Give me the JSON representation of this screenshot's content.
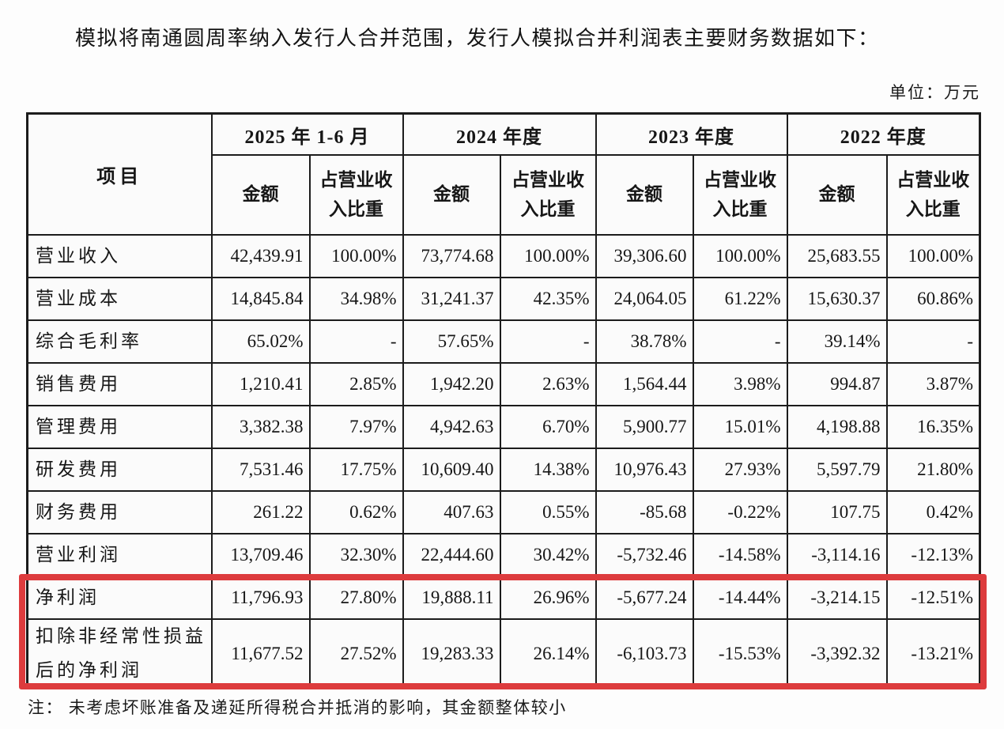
{
  "page": {
    "title": "模拟将南通圆周率纳入发行人合并范围，发行人模拟合并利润表主要财务数据如下：",
    "unit_label": "单位：万元",
    "footnote": "注： 未考虑坏账准备及递延所得税合并抵消的影响，其金额整体较小"
  },
  "table": {
    "corner_header": "项目",
    "period_headers": [
      "2025 年 1-6 月",
      "2024 年度",
      "2023 年度",
      "2022 年度"
    ],
    "sub_headers": {
      "amount": "金额",
      "ratio": "占营业收入比重"
    },
    "rows": [
      {
        "label": "营业收入",
        "values": [
          "42,439.91",
          "100.00%",
          "73,774.68",
          "100.00%",
          "39,306.60",
          "100.00%",
          "25,683.55",
          "100.00%"
        ]
      },
      {
        "label": "营业成本",
        "values": [
          "14,845.84",
          "34.98%",
          "31,241.37",
          "42.35%",
          "24,064.05",
          "61.22%",
          "15,630.37",
          "60.86%"
        ]
      },
      {
        "label": "综合毛利率",
        "values": [
          "65.02%",
          "-",
          "57.65%",
          "-",
          "38.78%",
          "-",
          "39.14%",
          "-"
        ]
      },
      {
        "label": "销售费用",
        "values": [
          "1,210.41",
          "2.85%",
          "1,942.20",
          "2.63%",
          "1,564.44",
          "3.98%",
          "994.87",
          "3.87%"
        ]
      },
      {
        "label": "管理费用",
        "values": [
          "3,382.38",
          "7.97%",
          "4,942.63",
          "6.70%",
          "5,900.77",
          "15.01%",
          "4,198.88",
          "16.35%"
        ]
      },
      {
        "label": "研发费用",
        "values": [
          "7,531.46",
          "17.75%",
          "10,609.40",
          "14.38%",
          "10,976.43",
          "27.93%",
          "5,597.79",
          "21.80%"
        ]
      },
      {
        "label": "财务费用",
        "values": [
          "261.22",
          "0.62%",
          "407.63",
          "0.55%",
          "-85.68",
          "-0.22%",
          "107.75",
          "0.42%"
        ]
      },
      {
        "label": "营业利润",
        "values": [
          "13,709.46",
          "32.30%",
          "22,444.60",
          "30.42%",
          "-5,732.46",
          "-14.58%",
          "-3,114.16",
          "-12.13%"
        ]
      },
      {
        "label": "净利润",
        "values": [
          "11,796.93",
          "27.80%",
          "19,888.11",
          "26.96%",
          "-5,677.24",
          "-14.44%",
          "-3,214.15",
          "-12.51%"
        ]
      },
      {
        "label": "扣除非经常性损益后的净利润",
        "values": [
          "11,677.52",
          "27.52%",
          "19,283.33",
          "26.14%",
          "-6,103.73",
          "-15.53%",
          "-3,392.32",
          "-13.21%"
        ]
      }
    ]
  },
  "highlight": {
    "color": "#dd3b3d",
    "highlighted_rows": [
      "净利润",
      "扣除非经常性损益后的净利润"
    ]
  }
}
